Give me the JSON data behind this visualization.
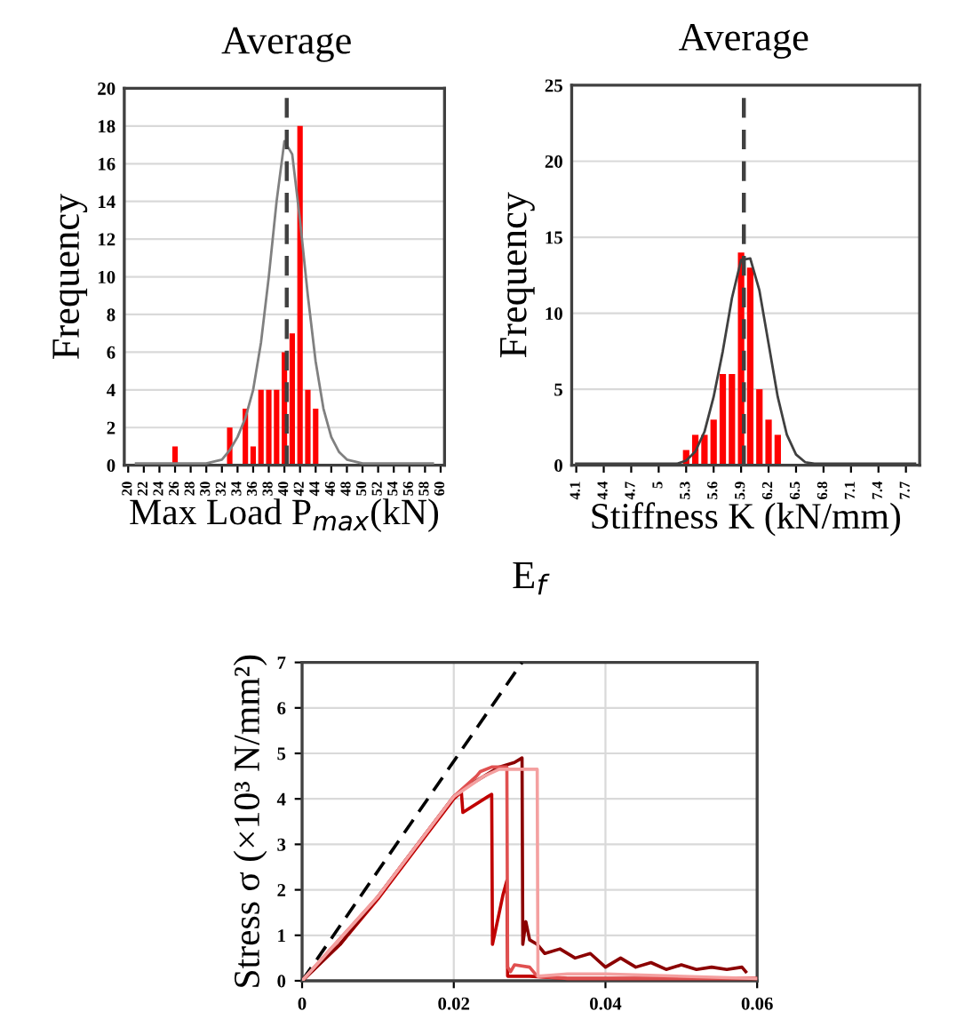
{
  "chart_data": [
    {
      "type": "histogram",
      "xlabel": "Max Load P$_{max}$(kN)",
      "ylabel": "Frequency",
      "bins": [
        25.5,
        26.5,
        27.5,
        28.5,
        29.5,
        30.5,
        31.5,
        32.5,
        33.5,
        34.5,
        35.5,
        36.5,
        37.5,
        38.5,
        39.5,
        40.5,
        41.5,
        42.5,
        43.5,
        44.5
      ],
      "values": [
        1,
        0,
        0,
        0,
        0,
        0,
        0,
        2,
        0,
        3,
        1,
        4,
        4,
        4,
        6,
        7,
        18,
        4,
        3
      ],
      "color": "#ff0000",
      "series": [
        {
          "type": "line",
          "color": "#808080",
          "x": [
            21,
            30,
            32,
            33,
            34,
            35,
            36,
            37,
            38,
            39,
            40,
            41,
            42,
            43,
            44,
            45,
            46,
            47,
            48,
            50,
            59
          ],
          "values": [
            0.1,
            0.1,
            0.3,
            0.8,
            1.5,
            2.5,
            4,
            6.5,
            10,
            14,
            17.2,
            16.5,
            13,
            9,
            5.5,
            3,
            1.5,
            0.7,
            0.3,
            0.1,
            0.1
          ]
        }
      ],
      "ref_lines": [
        {
          "axis": "x",
          "value": 40.3,
          "label": "Average",
          "color": "#404040",
          "line_style": "dashed"
        }
      ],
      "xlim": [
        19.5,
        60.5
      ],
      "xticks": [
        20,
        22,
        24,
        26,
        28,
        30,
        32,
        34,
        36,
        38,
        40,
        42,
        44,
        46,
        48,
        50,
        52,
        54,
        56,
        58,
        60
      ],
      "ylim": [
        0,
        20
      ],
      "yticks": [
        0,
        2,
        4,
        6,
        8,
        10,
        12,
        14,
        16,
        18,
        20
      ],
      "grid": "y"
    },
    {
      "type": "histogram",
      "xlabel": "Stiffness K (kN/mm)",
      "ylabel": "Frequency",
      "bins": [
        5.25,
        5.35,
        5.45,
        5.55,
        5.65,
        5.75,
        5.85,
        5.95,
        6.05,
        6.15,
        6.25,
        6.35
      ],
      "values": [
        1,
        2,
        2,
        3,
        6,
        6,
        14,
        13,
        5,
        3,
        2
      ],
      "color": "#ff0000",
      "series": [
        {
          "type": "line",
          "color": "#404040",
          "x": [
            4.1,
            5.2,
            5.3,
            5.4,
            5.5,
            5.6,
            5.7,
            5.8,
            5.9,
            6.0,
            6.1,
            6.2,
            6.3,
            6.4,
            6.5,
            6.6,
            6.7,
            7.8
          ],
          "values": [
            0.1,
            0.1,
            0.3,
            0.9,
            2.2,
            4.5,
            7.5,
            11,
            13.5,
            13.6,
            11.5,
            8,
            4.5,
            2,
            0.7,
            0.2,
            0.1,
            0.1
          ]
        }
      ],
      "ref_lines": [
        {
          "axis": "x",
          "value": 5.93,
          "label": "Average",
          "color": "#404040",
          "line_style": "dashed"
        }
      ],
      "xlim": [
        4.05,
        7.85
      ],
      "xticks": [
        4.1,
        4.4,
        4.7,
        {
          "value": 5.0,
          "label": "5"
        },
        5.3,
        5.6,
        5.9,
        6.2,
        6.5,
        6.8,
        7.1,
        7.4,
        7.7
      ],
      "ylim": [
        0,
        25
      ],
      "yticks": [
        0,
        5,
        10,
        15,
        20,
        25
      ],
      "grid": "y"
    },
    {
      "type": "line",
      "title": "E$_{f}$",
      "ylabel": "Stress σ (×10³ N/mm²)",
      "series": [
        {
          "color": "#000000",
          "line_style": "dashed",
          "x": [
            0,
            0.029
          ],
          "values": [
            0,
            7
          ]
        },
        {
          "color": "#c00000",
          "x": [
            0,
            0.005,
            0.01,
            0.015,
            0.02,
            0.021,
            0.0212,
            0.0245,
            0.025,
            0.0251,
            0.026,
            0.0265,
            0.027,
            0.0271,
            0.03,
            0.035,
            0.06
          ],
          "values": [
            0,
            0.8,
            1.8,
            2.9,
            4.0,
            4.15,
            3.7,
            4.05,
            4.1,
            0.8,
            1.5,
            1.9,
            2.2,
            0.1,
            0.1,
            0.05,
            0.05
          ]
        },
        {
          "color": "#8b0000",
          "x": [
            0,
            0.005,
            0.01,
            0.015,
            0.02,
            0.022,
            0.024,
            0.026,
            0.028,
            0.029,
            0.0291,
            0.0295,
            0.03,
            0.031,
            0.032,
            0.034,
            0.036,
            0.038,
            0.04,
            0.042,
            0.044,
            0.046,
            0.048,
            0.05,
            0.052,
            0.054,
            0.056,
            0.058,
            0.0585
          ],
          "values": [
            0,
            0.8,
            1.85,
            2.95,
            4.05,
            4.3,
            4.5,
            4.7,
            4.8,
            4.9,
            0.8,
            1.3,
            0.9,
            0.8,
            0.6,
            0.7,
            0.5,
            0.6,
            0.3,
            0.5,
            0.3,
            0.4,
            0.25,
            0.35,
            0.25,
            0.3,
            0.25,
            0.3,
            0.2
          ]
        },
        {
          "color": "#e05050",
          "x": [
            0,
            0.01,
            0.02,
            0.023,
            0.0235,
            0.025,
            0.027,
            0.0271,
            0.0275,
            0.028,
            0.03,
            0.031,
            0.035,
            0.06
          ],
          "values": [
            0,
            1.85,
            4.05,
            4.5,
            4.6,
            4.7,
            4.7,
            0.3,
            0.2,
            0.35,
            0.3,
            0.1,
            0.05,
            0.05
          ]
        },
        {
          "color": "#f4a0a0",
          "x": [
            0,
            0.01,
            0.02,
            0.024,
            0.026,
            0.028,
            0.031,
            0.0311,
            0.035,
            0.04,
            0.06
          ],
          "values": [
            0,
            1.85,
            4.05,
            4.5,
            4.65,
            4.65,
            4.65,
            0.1,
            0.15,
            0.15,
            0.05
          ]
        }
      ],
      "xlim": [
        0,
        0.06
      ],
      "xticks": [
        0,
        0.02,
        0.04,
        0.06
      ],
      "ylim": [
        0,
        7
      ],
      "yticks": [
        0,
        1,
        2,
        3,
        4,
        5,
        6,
        7
      ],
      "grid": true
    }
  ]
}
